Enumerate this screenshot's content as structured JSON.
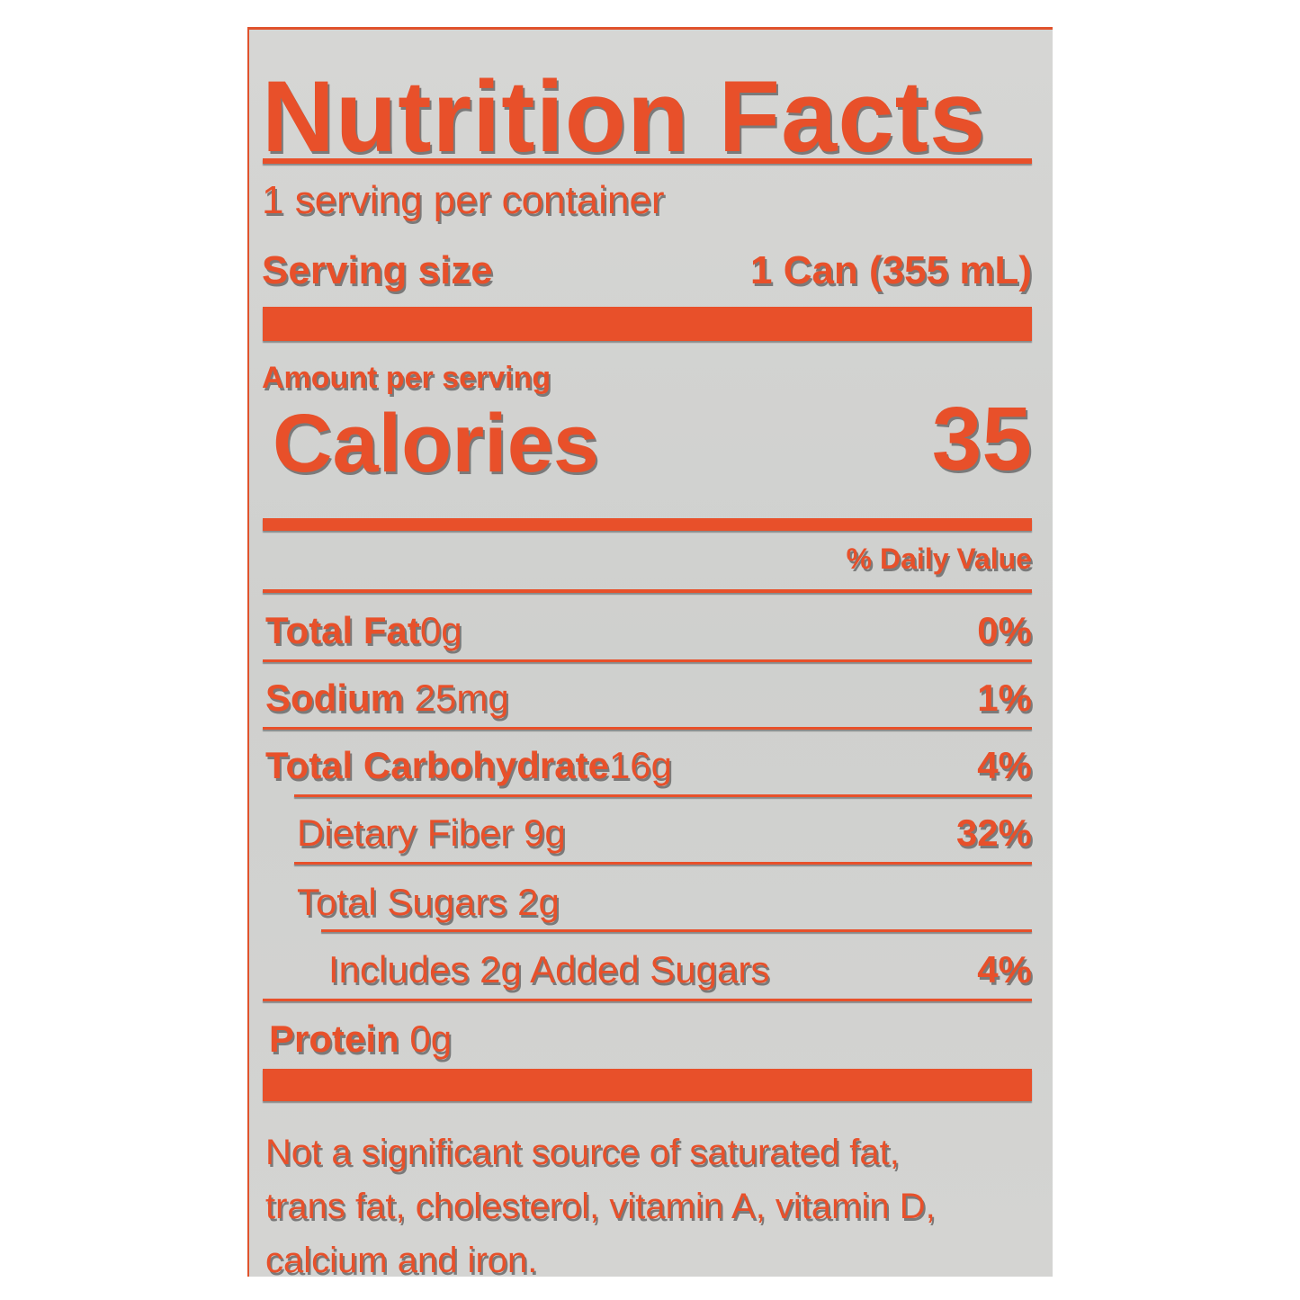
{
  "title": "Nutrition Facts",
  "servings_per_container": "1 serving per container",
  "serving_size": {
    "label": "Serving size",
    "value": "1 Can (355 mL)"
  },
  "amount_per_serving": "Amount per serving",
  "calories": {
    "label": "Calories",
    "value": "35"
  },
  "daily_value_header": "% Daily Value",
  "nutrients": [
    {
      "name": "Total Fat",
      "amount": "0g",
      "dv": "0%"
    },
    {
      "name": "Sodium",
      "amount": "25mg",
      "dv": "1%"
    },
    {
      "name": "Total Carbohydrate",
      "amount": "16g",
      "dv": "4%"
    },
    {
      "name": "Dietary Fiber 9g",
      "dv": "32%"
    },
    {
      "name": "Total Sugars 2g",
      "dv": ""
    },
    {
      "name": "Includes 2g Added Sugars",
      "dv": "4%"
    },
    {
      "name": "Protein",
      "amount": "0g"
    }
  ],
  "footnote": [
    "Not a significant source of saturated fat,",
    "trans fat, cholesterol, vitamin A, vitamin D,",
    "calcium and iron."
  ],
  "colors": {
    "ink": "#e8502a",
    "background": "#d4d4d2"
  }
}
